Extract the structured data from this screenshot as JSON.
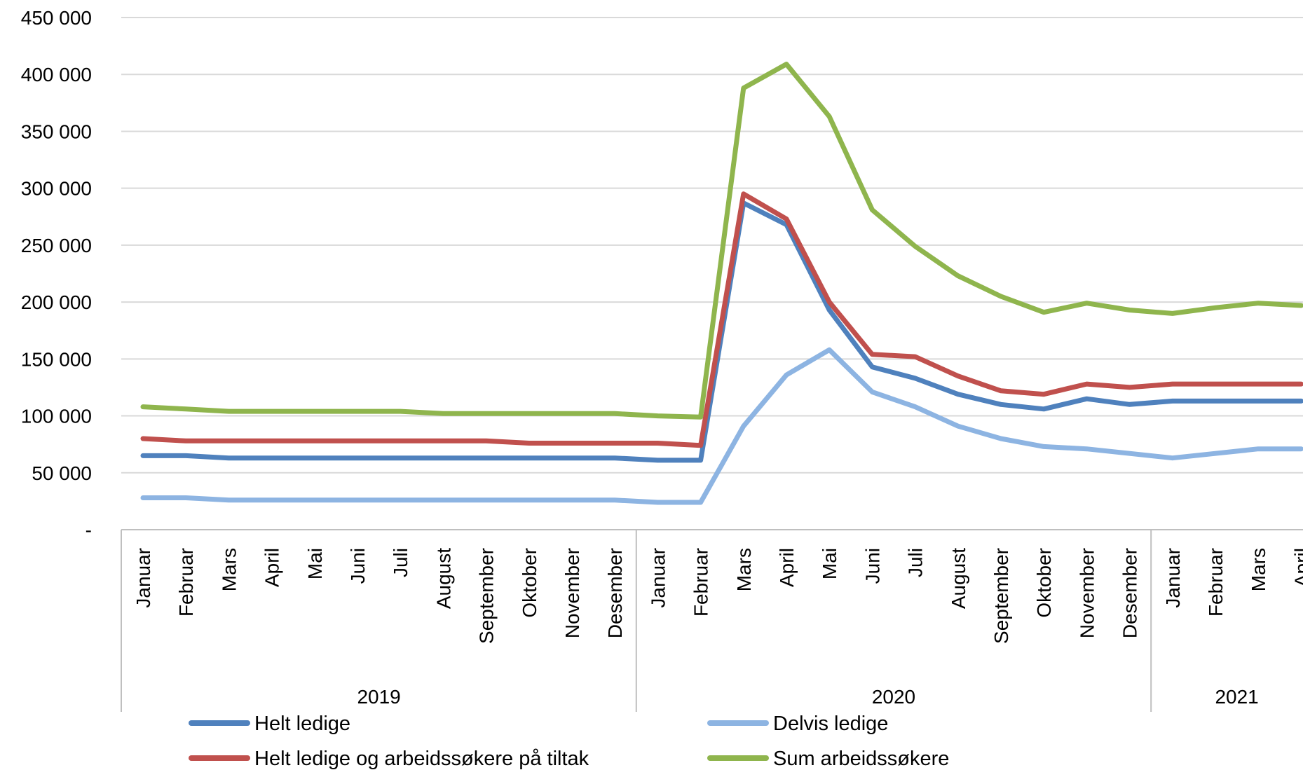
{
  "chart_data": {
    "type": "line",
    "title": "",
    "xlabel": "",
    "ylabel": "",
    "ylim": [
      0,
      450000
    ],
    "y_ticks": [
      {
        "value": 0,
        "label": "-"
      },
      {
        "value": 50000,
        "label": "50 000"
      },
      {
        "value": 100000,
        "label": "100 000"
      },
      {
        "value": 150000,
        "label": "150 000"
      },
      {
        "value": 200000,
        "label": "200 000"
      },
      {
        "value": 250000,
        "label": "250 000"
      },
      {
        "value": 300000,
        "label": "300 000"
      },
      {
        "value": 350000,
        "label": "350 000"
      },
      {
        "value": 400000,
        "label": "400 000"
      },
      {
        "value": 450000,
        "label": "450 000"
      }
    ],
    "grid": "horizontal",
    "legend_position": "bottom",
    "categories": [
      "Januar",
      "Februar",
      "Mars",
      "April",
      "Mai",
      "Juni",
      "Juli",
      "August",
      "September",
      "Oktober",
      "November",
      "Desember",
      "Januar",
      "Februar",
      "Mars",
      "April",
      "Mai",
      "Juni",
      "Juli",
      "August",
      "September",
      "Oktober",
      "November",
      "Desember",
      "Januar",
      "Februar",
      "Mars",
      "April"
    ],
    "year_groups": [
      {
        "label": "2019",
        "count": 12
      },
      {
        "label": "2020",
        "count": 12
      },
      {
        "label": "2021",
        "count": 4
      }
    ],
    "series": [
      {
        "name": "Helt ledige",
        "color": "#4f81bd",
        "values": [
          65000,
          65000,
          63000,
          63000,
          63000,
          63000,
          63000,
          63000,
          63000,
          63000,
          63000,
          63000,
          61000,
          61000,
          287000,
          268000,
          193000,
          143000,
          133000,
          119000,
          110000,
          106000,
          115000,
          110000,
          113000,
          113000,
          113000,
          113000
        ]
      },
      {
        "name": "Delvis ledige",
        "color": "#8db4e2",
        "values": [
          28000,
          28000,
          26000,
          26000,
          26000,
          26000,
          26000,
          26000,
          26000,
          26000,
          26000,
          26000,
          24000,
          24000,
          91000,
          136000,
          158000,
          121000,
          108000,
          91000,
          80000,
          73000,
          71000,
          67000,
          63000,
          67000,
          71000,
          71000
        ]
      },
      {
        "name": "Helt ledige og arbeidssøkere på tiltak",
        "color": "#c0504d",
        "values": [
          80000,
          78000,
          78000,
          78000,
          78000,
          78000,
          78000,
          78000,
          78000,
          76000,
          76000,
          76000,
          76000,
          74000,
          295000,
          273000,
          200000,
          154000,
          152000,
          135000,
          122000,
          119000,
          128000,
          125000,
          128000,
          128000,
          128000,
          128000
        ]
      },
      {
        "name": "Sum arbeidssøkere",
        "color": "#8fb54d",
        "values": [
          108000,
          106000,
          104000,
          104000,
          104000,
          104000,
          104000,
          102000,
          102000,
          102000,
          102000,
          102000,
          100000,
          99000,
          388000,
          409000,
          363000,
          281000,
          249000,
          223000,
          205000,
          191000,
          199000,
          193000,
          190000,
          195000,
          199000,
          197000
        ]
      }
    ]
  }
}
